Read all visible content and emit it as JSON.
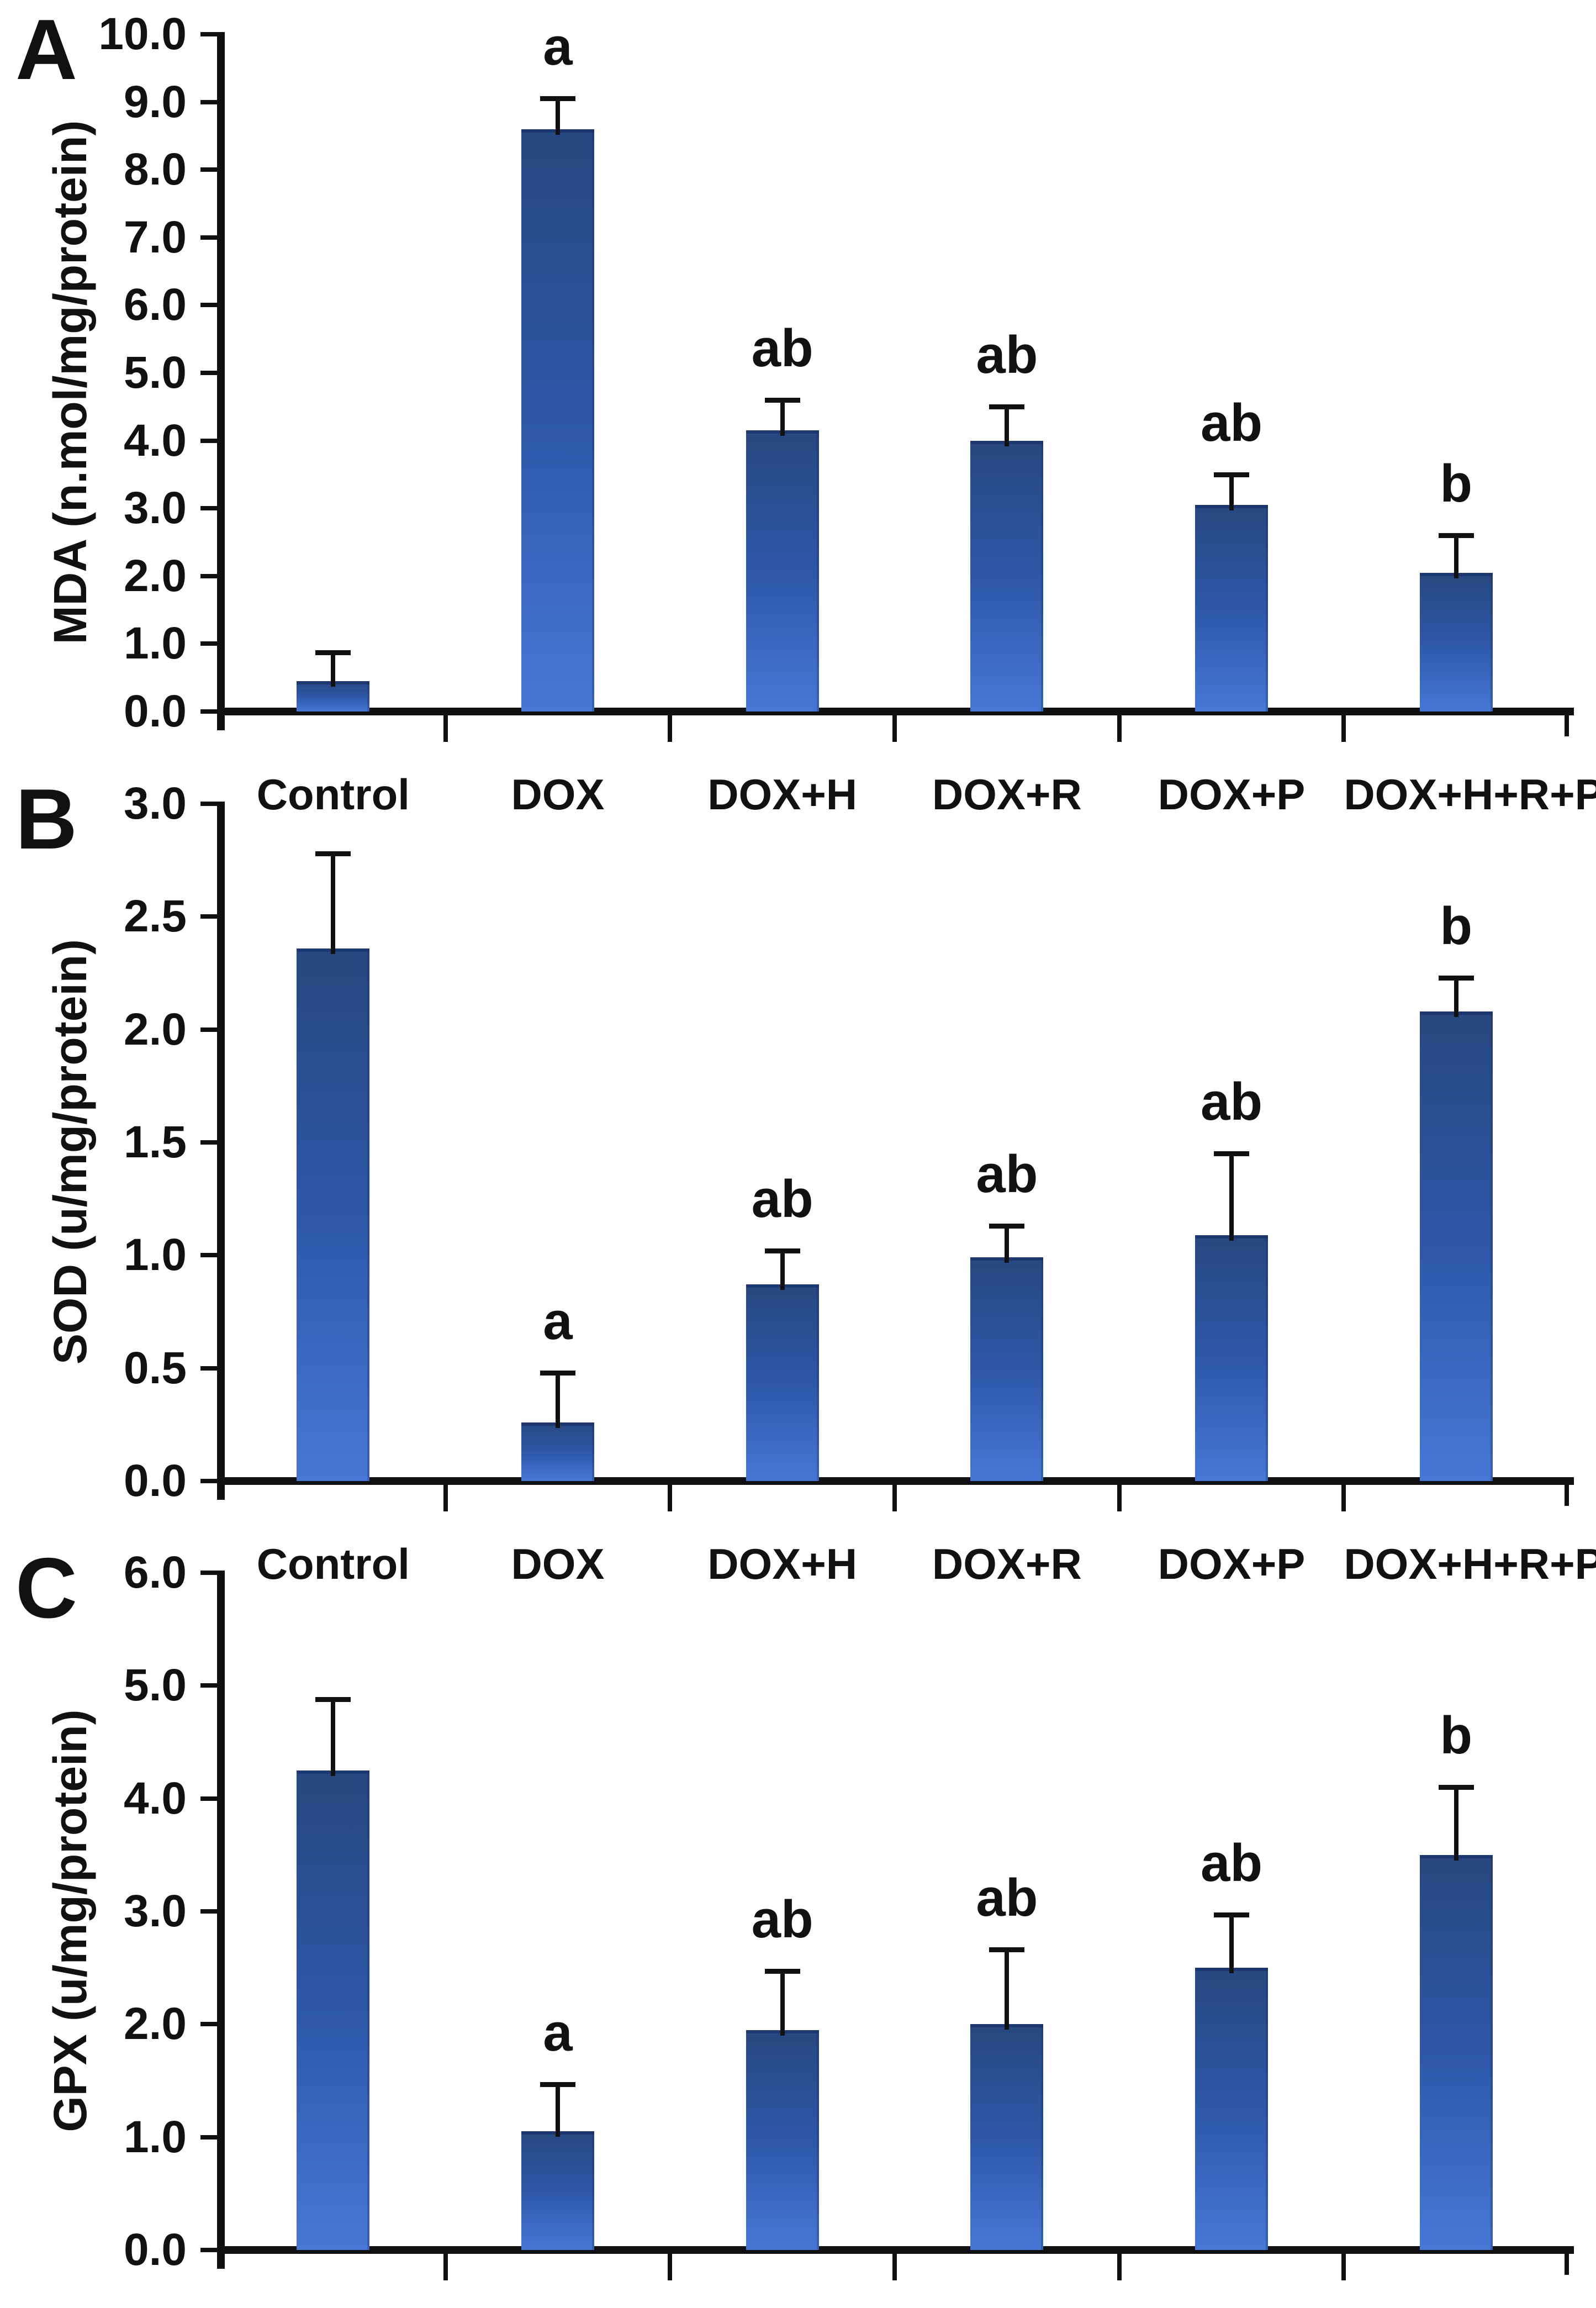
{
  "figure": {
    "background": "#ffffff",
    "panels": [
      "A",
      "B",
      "C"
    ]
  },
  "colors": {
    "bar_gradient_top": "#27477f",
    "bar_gradient_mid": "#2e57a8",
    "bar_gradient_bottom": "#4677d6",
    "axis": "#111111",
    "text": "#111111"
  },
  "chart_data": [
    {
      "type": "bar",
      "panel_label": "A",
      "ylabel": "MDA (n.mol/mg/protein)",
      "xlabel": "",
      "ylim": [
        0,
        10
      ],
      "ytick_step": 1.0,
      "ytick_decimals": 1,
      "grid": false,
      "legend": "none",
      "categories": [
        "Control",
        "DOX",
        "DOX+H",
        "DOX+R",
        "DOX+P",
        "DOX+H+R+P"
      ],
      "values": [
        0.45,
        8.6,
        4.15,
        4.0,
        3.05,
        2.05
      ],
      "errors_plus": [
        0.42,
        0.45,
        0.45,
        0.5,
        0.45,
        0.55
      ],
      "sig_labels": [
        "",
        "a",
        "ab",
        "ab",
        "ab",
        "b"
      ]
    },
    {
      "type": "bar",
      "panel_label": "B",
      "ylabel": "SOD (u/mg/protein)",
      "xlabel": "",
      "ylim": [
        0,
        3
      ],
      "ytick_step": 0.5,
      "ytick_decimals": 1,
      "grid": false,
      "legend": "none",
      "categories": [
        "Control",
        "DOX",
        "DOX+H",
        "DOX+R",
        "DOX+P",
        "DOX+H+R+P"
      ],
      "values": [
        2.36,
        0.26,
        0.87,
        0.99,
        1.09,
        2.08
      ],
      "errors_plus": [
        0.42,
        0.22,
        0.15,
        0.14,
        0.36,
        0.15
      ],
      "sig_labels": [
        "",
        "a",
        "ab",
        "ab",
        "ab",
        "b"
      ]
    },
    {
      "type": "bar",
      "panel_label": "C",
      "ylabel": "GPX (u/mg/protein)",
      "xlabel": "",
      "ylim": [
        0,
        6
      ],
      "ytick_step": 1.0,
      "ytick_decimals": 1,
      "grid": false,
      "legend": "none",
      "categories": [
        "Control",
        "DOX",
        "DOX+H",
        "DOX+R",
        "DOX+P",
        "DOX+H+R+P"
      ],
      "values": [
        4.25,
        1.05,
        1.95,
        2.0,
        2.5,
        3.5
      ],
      "errors_plus": [
        0.63,
        0.42,
        0.52,
        0.66,
        0.47,
        0.6
      ],
      "sig_labels": [
        "",
        "a",
        "ab",
        "ab",
        "ab",
        "b"
      ]
    }
  ]
}
